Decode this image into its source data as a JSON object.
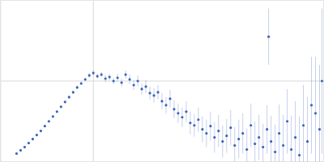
{
  "chart_data": {
    "type": "scatter",
    "x": [
      20,
      25,
      30,
      35,
      40,
      45,
      50,
      55,
      60,
      65,
      70,
      75,
      80,
      85,
      90,
      95,
      100,
      105,
      110,
      115,
      120,
      125,
      130,
      135,
      140,
      145,
      150,
      155,
      160,
      165,
      170,
      175,
      180,
      185,
      190,
      195,
      200,
      205,
      210,
      215,
      220,
      225,
      230,
      235,
      240,
      245,
      250,
      255,
      260,
      265,
      270,
      275,
      280,
      285,
      290,
      295,
      300,
      305,
      310,
      315,
      320,
      325,
      330,
      332,
      335,
      340,
      345,
      350,
      355,
      360,
      365,
      370,
      375,
      380,
      385,
      390,
      395,
      398
    ],
    "values": [
      10,
      14,
      18,
      23,
      28,
      33,
      38,
      44,
      50,
      56,
      62,
      68,
      74,
      80,
      86,
      92,
      97,
      102,
      107,
      110,
      106,
      108,
      103,
      105,
      100,
      104,
      98,
      108,
      102,
      95,
      100,
      90,
      93,
      85,
      82,
      86,
      75,
      70,
      78,
      65,
      60,
      55,
      62,
      48,
      45,
      52,
      40,
      35,
      44,
      30,
      38,
      25,
      32,
      42,
      20,
      28,
      35,
      15,
      45,
      22,
      30,
      18,
      40,
      155,
      25,
      12,
      35,
      20,
      50,
      15,
      30,
      8,
      45,
      25,
      70,
      60,
      40,
      100
    ],
    "errors": [
      1,
      1,
      1,
      1,
      1,
      1,
      1,
      1,
      1,
      1,
      1,
      1,
      2,
      2,
      2,
      2,
      2,
      2,
      3,
      3,
      3,
      3,
      4,
      4,
      4,
      5,
      5,
      5,
      6,
      6,
      7,
      7,
      8,
      8,
      9,
      9,
      10,
      10,
      11,
      11,
      12,
      12,
      13,
      14,
      14,
      15,
      16,
      17,
      18,
      19,
      20,
      20,
      21,
      22,
      23,
      24,
      25,
      26,
      27,
      28,
      28,
      29,
      30,
      35,
      32,
      34,
      36,
      38,
      40,
      42,
      45,
      48,
      50,
      55,
      60,
      70,
      80,
      90
    ],
    "color": "#3b64b9",
    "marker": "circle",
    "xlim": [
      0,
      400
    ],
    "ylim": [
      0,
      200
    ],
    "xticks": [
      115
    ],
    "yticks": [
      100
    ],
    "grid": true,
    "tick_labels": false
  }
}
